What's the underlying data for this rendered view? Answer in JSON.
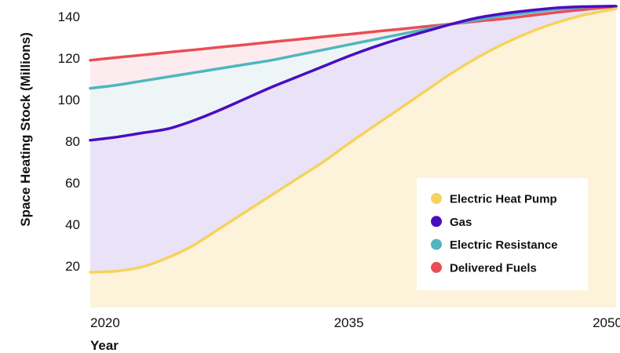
{
  "chart_data": {
    "type": "area",
    "xlabel": "Year",
    "ylabel": "Space Heating Stock (Millions)",
    "x": [
      2020,
      2021.5,
      2023,
      2024.5,
      2026,
      2027.5,
      2029,
      2030.5,
      2032,
      2033.5,
      2035,
      2036.5,
      2038,
      2039.5,
      2041,
      2042.5,
      2044,
      2045.5,
      2047,
      2048.5,
      2050,
      2050.5
    ],
    "xlim": [
      2020,
      2050.5
    ],
    "ylim": [
      0,
      148
    ],
    "x_ticks": [
      "2020",
      "2035",
      "2050"
    ],
    "y_ticks": [
      "20",
      "40",
      "60",
      "80",
      "100",
      "120",
      "140"
    ],
    "grid": false,
    "legend_position": "bottom-right",
    "legend": [
      "Electric Heat Pump",
      "Gas",
      "Electric Resistance",
      "Delivered Fuels"
    ],
    "series": [
      {
        "name": "Electric Heat Pump",
        "color": "#F5D35C",
        "fill": "#FDF3DA",
        "values": [
          17,
          17.5,
          19.5,
          24,
          30,
          38,
          46,
          54,
          62,
          70,
          79,
          87.5,
          96,
          104.5,
          113,
          120.5,
          127,
          132.5,
          137,
          140.5,
          143,
          143.8
        ]
      },
      {
        "name": "Gas",
        "color": "#4A0CC2",
        "fill": "#EAE2F7",
        "values": [
          80.5,
          82,
          84,
          86,
          90,
          95,
          100.5,
          106,
          111,
          116,
          121,
          125.5,
          129.5,
          133,
          136.5,
          139.5,
          141.5,
          143,
          144.2,
          144.8,
          145,
          145
        ]
      },
      {
        "name": "Electric Resistance",
        "color": "#4FB6BF",
        "fill": "#EEF5F7",
        "values": [
          105.5,
          107,
          109,
          111,
          113,
          115,
          117,
          119,
          121.5,
          124,
          126.5,
          129,
          131.5,
          134,
          136.5,
          138.5,
          140.5,
          142,
          143.5,
          144.5,
          145,
          145
        ]
      },
      {
        "name": "Delivered Fuels",
        "color": "#E94E55",
        "fill": "#FDECEF",
        "values": [
          119,
          120.3,
          121.5,
          122.8,
          124,
          125.3,
          126.5,
          127.8,
          129,
          130.3,
          131.5,
          132.8,
          134,
          135.3,
          136.5,
          137.8,
          139,
          140.5,
          142,
          143.3,
          144.5,
          145
        ]
      }
    ]
  }
}
